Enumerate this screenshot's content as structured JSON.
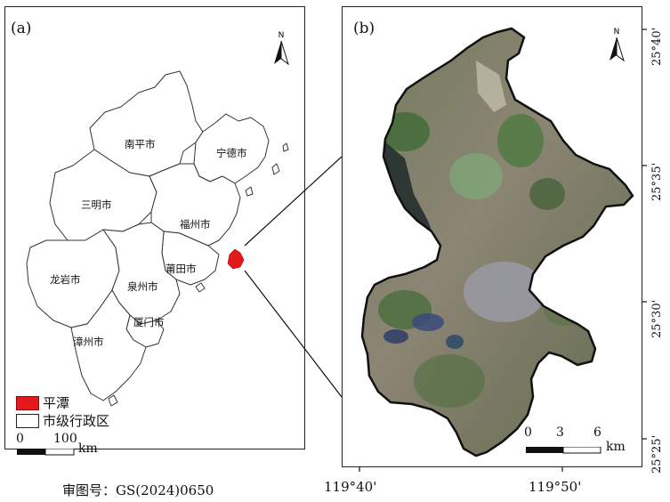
{
  "panel_a": {
    "label": "(a)",
    "cities": [
      "南平市",
      "宁德市",
      "三明市",
      "福州市",
      "龙岩市",
      "莆田市",
      "泉州市",
      "厦门市",
      "漳州市"
    ],
    "legend": {
      "highlight_label": "平潭",
      "admin_label": "市级行政区",
      "highlight_color": "#e31a1c"
    },
    "scalebar": {
      "ticks": [
        "0",
        "100"
      ],
      "unit": "km"
    },
    "north": "N"
  },
  "panel_b": {
    "label": "(b)",
    "north": "N",
    "scalebar": {
      "ticks": [
        "0",
        "3",
        "6"
      ],
      "unit": "km"
    },
    "lat_ticks": [
      "25°40'",
      "25°35'",
      "25°30'",
      "25°25'"
    ],
    "lon_ticks": [
      "119°40'",
      "119°50'"
    ]
  },
  "approval_number": "审图号：GS(2024)0650"
}
